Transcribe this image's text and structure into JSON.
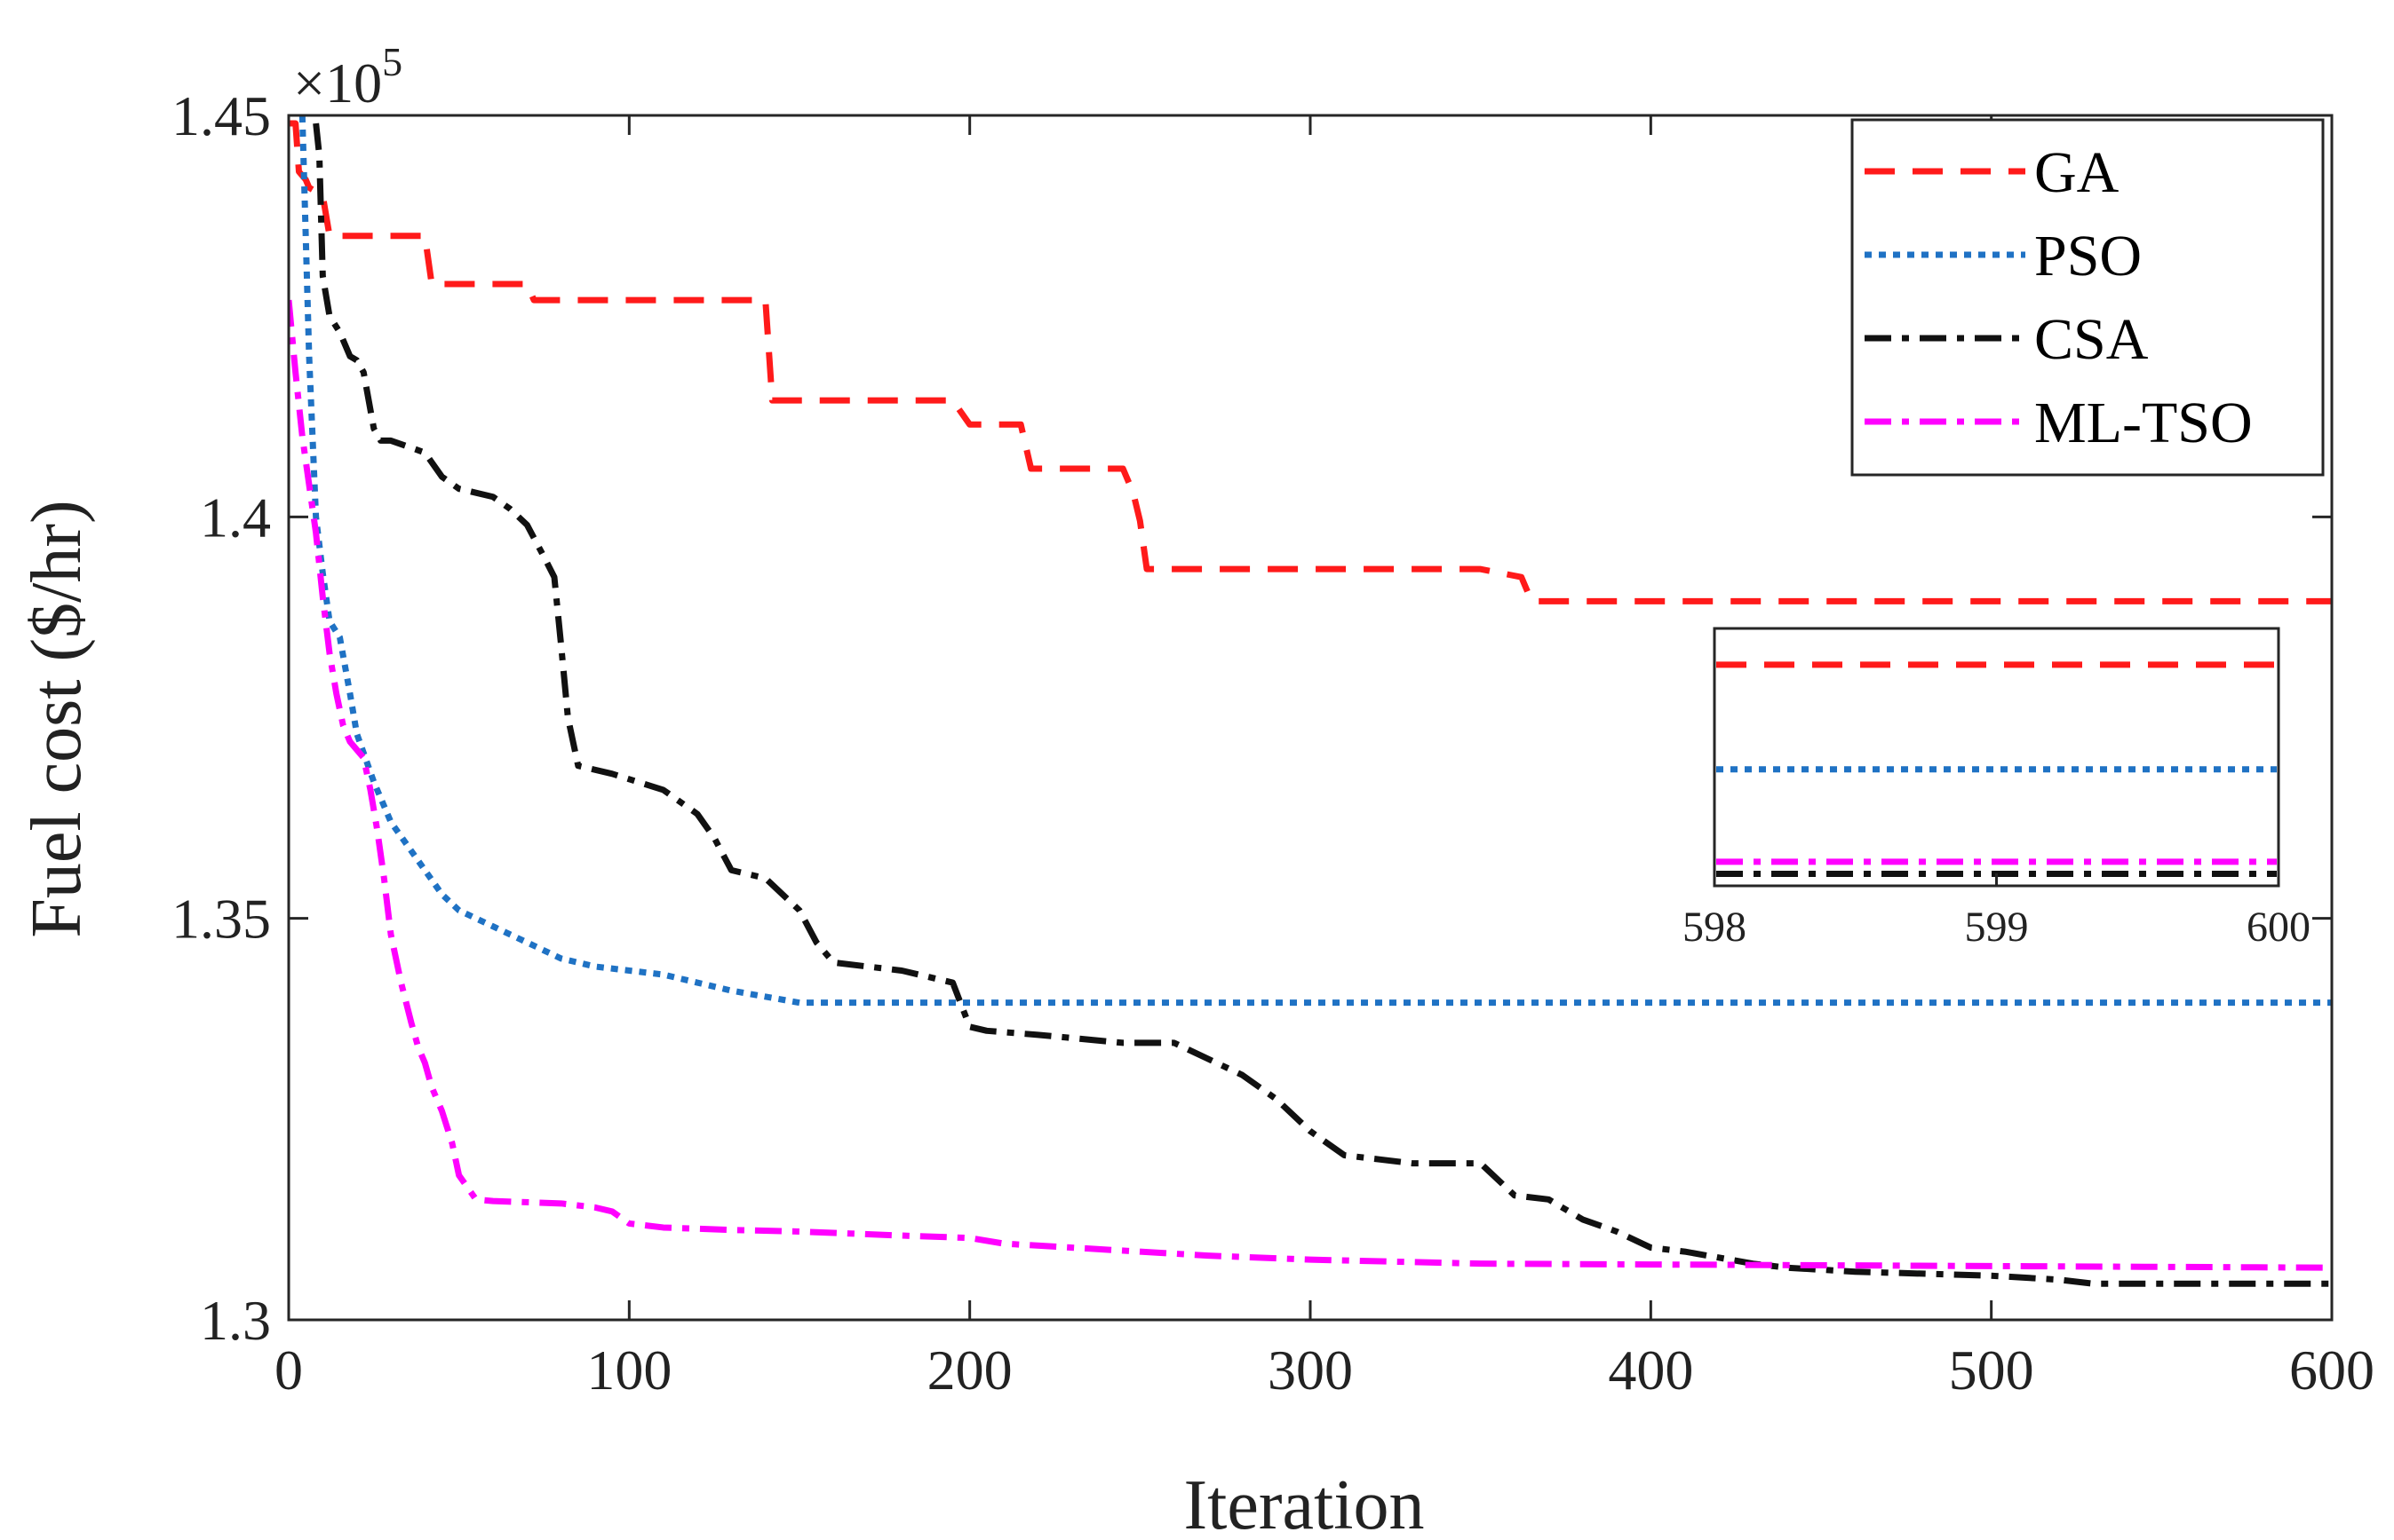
{
  "chart_data": {
    "type": "line",
    "title": "",
    "xlabel": "Iteration",
    "ylabel": "Fuel cost ($/hr)",
    "y_multiplier": "×10",
    "y_multiplier_exponent": "5",
    "xlim": [
      0,
      600
    ],
    "ylim": [
      1.3,
      1.45
    ],
    "xticks": [
      0,
      100,
      200,
      300,
      400,
      500,
      600
    ],
    "yticks": [
      1.3,
      1.35,
      1.4,
      1.45
    ],
    "xtick_labels": [
      "0",
      "100",
      "200",
      "300",
      "400",
      "500",
      "600"
    ],
    "ytick_labels": [
      "1.3",
      "1.35",
      "1.4",
      "1.45"
    ],
    "grid": false,
    "legend_position": "top-right",
    "series": [
      {
        "name": "GA",
        "color": "#ff1a1a",
        "style": "dashed",
        "x": [
          0,
          2,
          3,
          5,
          6,
          10,
          12,
          40,
          42,
          70,
          72,
          140,
          142,
          195,
          200,
          215,
          218,
          245,
          248,
          250,
          252,
          350,
          362,
          365,
          600
        ],
        "y": [
          1.449,
          1.449,
          1.443,
          1.442,
          1.441,
          1.44,
          1.435,
          1.435,
          1.429,
          1.429,
          1.427,
          1.427,
          1.4145,
          1.4145,
          1.4115,
          1.4115,
          1.406,
          1.406,
          1.403,
          1.3995,
          1.3935,
          1.3935,
          1.3925,
          1.3895,
          1.3895
        ]
      },
      {
        "name": "PSO",
        "color": "#1f72c4",
        "style": "dotted",
        "x": [
          4,
          5,
          6,
          7,
          8,
          10,
          12,
          15,
          18,
          20,
          25,
          30,
          35,
          40,
          45,
          50,
          60,
          70,
          80,
          90,
          110,
          130,
          150,
          200,
          600
        ],
        "y": [
          1.45,
          1.435,
          1.42,
          1.41,
          1.4,
          1.393,
          1.387,
          1.385,
          1.378,
          1.373,
          1.367,
          1.362,
          1.359,
          1.356,
          1.353,
          1.351,
          1.349,
          1.347,
          1.345,
          1.344,
          1.343,
          1.341,
          1.3395,
          1.3395,
          1.3395
        ]
      },
      {
        "name": "CSA",
        "color": "#111111",
        "style": "dashdot",
        "x": [
          8,
          9,
          10,
          12,
          15,
          18,
          20,
          22,
          25,
          27,
          30,
          40,
          45,
          50,
          60,
          65,
          70,
          75,
          78,
          80,
          82,
          85,
          95,
          110,
          120,
          125,
          130,
          140,
          150,
          155,
          160,
          170,
          180,
          195,
          200,
          205,
          220,
          245,
          260,
          280,
          290,
          300,
          310,
          320,
          330,
          350,
          360,
          370,
          380,
          390,
          400,
          410,
          430,
          440,
          460,
          500,
          520,
          530,
          600
        ],
        "y": [
          1.449,
          1.445,
          1.43,
          1.425,
          1.423,
          1.42,
          1.4195,
          1.418,
          1.411,
          1.4095,
          1.4095,
          1.408,
          1.405,
          1.4035,
          1.4025,
          1.401,
          1.399,
          1.395,
          1.3925,
          1.384,
          1.375,
          1.369,
          1.368,
          1.366,
          1.363,
          1.36,
          1.356,
          1.355,
          1.351,
          1.347,
          1.3445,
          1.344,
          1.3435,
          1.342,
          1.3365,
          1.336,
          1.3355,
          1.3345,
          1.3345,
          1.3305,
          1.3275,
          1.3235,
          1.3205,
          1.32,
          1.3195,
          1.3195,
          1.3155,
          1.315,
          1.3125,
          1.311,
          1.309,
          1.3085,
          1.307,
          1.3065,
          1.306,
          1.3055,
          1.305,
          1.3045,
          1.3045
        ]
      },
      {
        "name": "ML-TSO",
        "color": "#ff00ff",
        "style": "dashdot",
        "x": [
          0,
          2,
          4,
          6,
          8,
          10,
          12,
          14,
          16,
          18,
          20,
          22,
          24,
          26,
          28,
          30,
          33,
          36,
          38,
          40,
          42,
          45,
          48,
          50,
          55,
          60,
          80,
          90,
          95,
          100,
          110,
          130,
          150,
          180,
          200,
          210,
          230,
          250,
          270,
          300,
          330,
          350,
          400,
          450,
          500,
          550,
          600
        ],
        "y": [
          1.427,
          1.418,
          1.41,
          1.404,
          1.398,
          1.39,
          1.383,
          1.378,
          1.374,
          1.372,
          1.371,
          1.37,
          1.366,
          1.361,
          1.355,
          1.348,
          1.342,
          1.337,
          1.334,
          1.332,
          1.329,
          1.326,
          1.322,
          1.318,
          1.315,
          1.3148,
          1.3145,
          1.314,
          1.3135,
          1.312,
          1.3115,
          1.3112,
          1.311,
          1.3105,
          1.3102,
          1.3095,
          1.309,
          1.3085,
          1.308,
          1.3075,
          1.3072,
          1.307,
          1.3069,
          1.3068,
          1.3067,
          1.3066,
          1.3065
        ]
      }
    ],
    "inset": {
      "xlim": [
        598,
        600
      ],
      "xtick_labels": [
        "598",
        "599",
        "600"
      ],
      "lines": [
        {
          "series": "GA",
          "level": 0.88
        },
        {
          "series": "PSO",
          "level": 0.45
        },
        {
          "series": "ML-TSO",
          "level": 0.07
        },
        {
          "series": "CSA",
          "level": 0.02
        }
      ]
    }
  }
}
